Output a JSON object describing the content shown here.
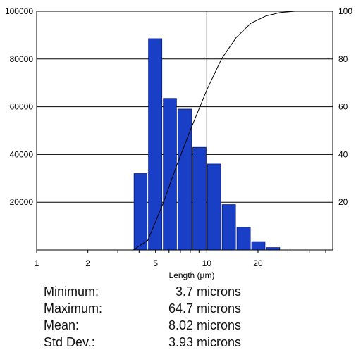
{
  "chart_data": {
    "type": "bar",
    "xlabel": "Length (µm)",
    "x_scale": "log",
    "xlim": [
      1,
      55
    ],
    "x_ticks": [
      1,
      2,
      5,
      10,
      20
    ],
    "ylim_left": [
      0,
      100000
    ],
    "y_ticks_left": [
      20000,
      40000,
      60000,
      80000,
      100000
    ],
    "ylim_right": [
      0,
      100
    ],
    "y_ticks_right": [
      20,
      40,
      60,
      80,
      100
    ],
    "bar_color": "#1a3fc7",
    "bars": [
      {
        "x0": 3.7,
        "x1": 4.5,
        "value": 32000
      },
      {
        "x0": 4.5,
        "x1": 5.5,
        "value": 88500
      },
      {
        "x0": 5.5,
        "x1": 6.7,
        "value": 63500
      },
      {
        "x0": 6.7,
        "x1": 8.2,
        "value": 59000
      },
      {
        "x0": 8.2,
        "x1": 10,
        "value": 43000
      },
      {
        "x0": 10,
        "x1": 12.2,
        "value": 36000
      },
      {
        "x0": 12.2,
        "x1": 14.9,
        "value": 19000
      },
      {
        "x0": 14.9,
        "x1": 18.2,
        "value": 9500
      },
      {
        "x0": 18.2,
        "x1": 22.2,
        "value": 3500
      },
      {
        "x0": 22.2,
        "x1": 27.1,
        "value": 1000
      }
    ],
    "cumulative": {
      "axis": "right",
      "points": [
        [
          3.7,
          0
        ],
        [
          4.5,
          4
        ],
        [
          5.5,
          19
        ],
        [
          6.7,
          36
        ],
        [
          8.2,
          52
        ],
        [
          10,
          67
        ],
        [
          12.2,
          80
        ],
        [
          14.9,
          89
        ],
        [
          18.2,
          95
        ],
        [
          22.2,
          98
        ],
        [
          27.1,
          99.5
        ],
        [
          33,
          100
        ],
        [
          55,
          100
        ]
      ]
    },
    "vline_x": 10
  },
  "stats": [
    {
      "label": "Minimum:",
      "value": "3.7 microns"
    },
    {
      "label": "Maximum:",
      "value": "64.7 microns"
    },
    {
      "label": "Mean:",
      "value": "8.02 microns"
    },
    {
      "label": "Std Dev.:",
      "value": "3.93 microns"
    }
  ]
}
